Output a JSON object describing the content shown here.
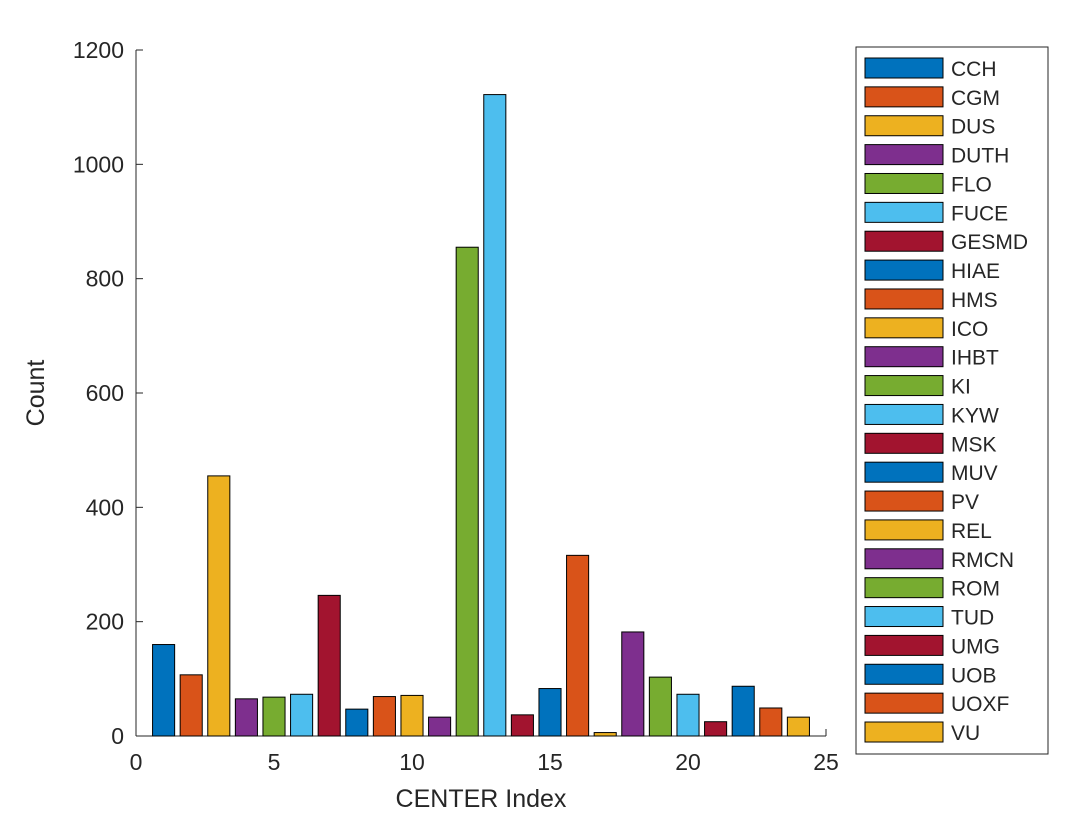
{
  "chart_data": {
    "type": "bar",
    "title": "",
    "xlabel": "CENTER Index",
    "ylabel": "Count",
    "xlim": [
      0,
      25
    ],
    "ylim": [
      0,
      1200
    ],
    "xticks": [
      0,
      5,
      10,
      15,
      20,
      25
    ],
    "yticks": [
      0,
      200,
      400,
      600,
      800,
      1000,
      1200
    ],
    "grid": false,
    "legend_placement": "outside-right",
    "palette": [
      "#0072BD",
      "#D95319",
      "#EDB120",
      "#7E2F8E",
      "#77AC30",
      "#4DBEEE",
      "#A2142F"
    ],
    "series": [
      {
        "name": "CCH",
        "x": 1,
        "value": 160
      },
      {
        "name": "CGM",
        "x": 2,
        "value": 107
      },
      {
        "name": "DUS",
        "x": 3,
        "value": 455
      },
      {
        "name": "DUTH",
        "x": 4,
        "value": 65
      },
      {
        "name": "FLO",
        "x": 5,
        "value": 68
      },
      {
        "name": "FUCE",
        "x": 6,
        "value": 73
      },
      {
        "name": "GESMD",
        "x": 7,
        "value": 246
      },
      {
        "name": "HIAE",
        "x": 8,
        "value": 47
      },
      {
        "name": "HMS",
        "x": 9,
        "value": 69
      },
      {
        "name": "ICO",
        "x": 10,
        "value": 71
      },
      {
        "name": "IHBT",
        "x": 11,
        "value": 33
      },
      {
        "name": "KI",
        "x": 12,
        "value": 855
      },
      {
        "name": "KYW",
        "x": 13,
        "value": 1122
      },
      {
        "name": "MSK",
        "x": 14,
        "value": 37
      },
      {
        "name": "MUV",
        "x": 15,
        "value": 83
      },
      {
        "name": "PV",
        "x": 16,
        "value": 316
      },
      {
        "name": "REL",
        "x": 17,
        "value": 6
      },
      {
        "name": "RMCN",
        "x": 18,
        "value": 182
      },
      {
        "name": "ROM",
        "x": 19,
        "value": 103
      },
      {
        "name": "TUD",
        "x": 20,
        "value": 73
      },
      {
        "name": "UMG",
        "x": 21,
        "value": 25
      },
      {
        "name": "UOB",
        "x": 22,
        "value": 87
      },
      {
        "name": "UOXF",
        "x": 23,
        "value": 49
      },
      {
        "name": "VU",
        "x": 24,
        "value": 33
      }
    ]
  }
}
